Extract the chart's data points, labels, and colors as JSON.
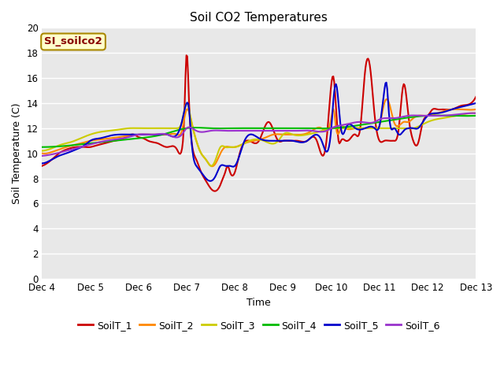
{
  "title": "Soil CO2 Temperatures",
  "xlabel": "Time",
  "ylabel": "Soil Temperature (C)",
  "annotation": "SI_soilco2",
  "ylim": [
    0,
    20
  ],
  "yticks": [
    0,
    2,
    4,
    6,
    8,
    10,
    12,
    14,
    16,
    18,
    20
  ],
  "x_labels": [
    "Dec 4",
    "Dec 5",
    "Dec 6",
    "Dec 7",
    "Dec 8",
    "Dec 9",
    "Dec 10",
    "Dec 11",
    "Dec 12",
    "Dec 13"
  ],
  "series_colors": [
    "#cc0000",
    "#ff8800",
    "#cccc00",
    "#00bb00",
    "#0000cc",
    "#9933cc"
  ],
  "series_names": [
    "SoilT_1",
    "SoilT_2",
    "SoilT_3",
    "SoilT_4",
    "SoilT_5",
    "SoilT_6"
  ],
  "background_color": "#e8e8e8",
  "grid_color": "#ffffff",
  "SoilT_1_x": [
    0,
    0.1,
    0.2,
    0.35,
    0.5,
    0.7,
    0.9,
    1.0,
    1.1,
    1.2,
    1.3,
    1.5,
    1.7,
    1.9,
    2.0,
    2.1,
    2.2,
    2.4,
    2.6,
    2.8,
    2.9,
    2.95,
    3.0,
    3.05,
    3.1,
    3.2,
    3.3,
    3.4,
    3.5,
    3.6,
    3.7,
    3.75,
    3.8,
    3.85,
    3.9,
    4.0,
    4.1,
    4.3,
    4.5,
    4.7,
    4.9,
    5.0,
    5.1,
    5.2,
    5.3,
    5.5,
    5.7,
    5.9,
    6.0,
    6.05,
    6.1,
    6.15,
    6.2,
    6.3,
    6.4,
    6.5,
    6.6,
    6.7,
    6.8,
    6.9,
    7.0,
    7.1,
    7.2,
    7.3,
    7.4,
    7.5,
    7.6,
    7.7,
    7.8,
    7.9,
    8.0,
    8.1,
    8.2,
    8.3,
    8.5,
    8.7,
    8.9,
    9.0
  ],
  "SoilT_1_y": [
    9.0,
    9.2,
    9.5,
    10.0,
    10.3,
    10.5,
    10.5,
    10.5,
    10.6,
    10.7,
    10.8,
    11.0,
    11.2,
    11.5,
    11.3,
    11.2,
    11.0,
    10.8,
    10.5,
    10.3,
    10.3,
    13.0,
    18.0,
    14.0,
    11.0,
    9.5,
    8.5,
    7.8,
    7.2,
    7.0,
    7.5,
    8.0,
    8.5,
    9.0,
    8.5,
    8.5,
    10.0,
    11.0,
    11.0,
    12.5,
    11.0,
    11.0,
    11.0,
    11.0,
    11.0,
    11.0,
    11.0,
    11.0,
    15.5,
    16.0,
    13.5,
    11.0,
    11.0,
    11.0,
    11.2,
    11.5,
    12.0,
    16.5,
    17.0,
    13.0,
    11.0,
    11.0,
    11.0,
    11.0,
    12.0,
    15.5,
    13.0,
    11.0,
    10.8,
    12.5,
    13.0,
    13.5,
    13.5,
    13.5,
    13.5,
    13.8,
    14.0,
    14.5
  ],
  "SoilT_2_x": [
    0,
    0.1,
    0.2,
    0.35,
    0.5,
    0.7,
    0.9,
    1.0,
    1.2,
    1.4,
    1.6,
    1.8,
    2.0,
    2.2,
    2.4,
    2.6,
    2.8,
    2.9,
    3.0,
    3.1,
    3.2,
    3.3,
    3.4,
    3.5,
    3.6,
    3.7,
    3.8,
    3.9,
    4.0,
    4.2,
    4.4,
    4.6,
    4.8,
    5.0,
    5.2,
    5.4,
    5.6,
    5.8,
    6.0,
    6.05,
    6.1,
    6.2,
    6.3,
    6.5,
    6.7,
    6.9,
    7.0,
    7.1,
    7.2,
    7.3,
    7.4,
    7.5,
    7.6,
    7.7,
    7.8,
    7.9,
    8.0,
    8.2,
    8.5,
    8.7,
    9.0
  ],
  "SoilT_2_y": [
    10.0,
    10.0,
    10.1,
    10.3,
    10.5,
    10.7,
    10.9,
    11.0,
    11.1,
    11.2,
    11.3,
    11.4,
    11.5,
    11.5,
    11.5,
    11.5,
    11.5,
    11.8,
    13.5,
    12.5,
    11.0,
    10.0,
    9.5,
    9.0,
    9.2,
    10.0,
    10.5,
    10.5,
    10.5,
    10.8,
    11.0,
    11.2,
    11.5,
    11.5,
    11.5,
    11.5,
    11.8,
    12.0,
    12.8,
    13.5,
    12.0,
    12.0,
    12.0,
    12.0,
    12.0,
    12.0,
    12.2,
    14.0,
    14.0,
    12.5,
    12.2,
    12.5,
    12.5,
    12.8,
    13.0,
    13.0,
    13.0,
    13.2,
    13.5,
    13.5,
    13.5
  ],
  "SoilT_3_x": [
    0,
    0.2,
    0.4,
    0.6,
    0.8,
    1.0,
    1.2,
    1.4,
    1.6,
    1.8,
    2.0,
    2.2,
    2.5,
    2.8,
    2.9,
    3.0,
    3.1,
    3.2,
    3.3,
    3.4,
    3.5,
    3.6,
    3.7,
    3.8,
    3.9,
    4.0,
    4.3,
    4.6,
    4.9,
    5.0,
    5.2,
    5.5,
    5.8,
    6.0,
    6.05,
    6.1,
    6.2,
    6.3,
    6.5,
    6.7,
    6.9,
    7.0,
    7.1,
    7.2,
    7.3,
    7.4,
    7.5,
    7.7,
    8.0,
    8.3,
    8.6,
    8.9,
    9.0
  ],
  "SoilT_3_y": [
    10.2,
    10.4,
    10.7,
    10.9,
    11.2,
    11.5,
    11.7,
    11.8,
    11.9,
    12.0,
    12.0,
    12.0,
    12.0,
    12.0,
    12.5,
    14.0,
    12.5,
    11.0,
    10.0,
    9.5,
    9.0,
    9.5,
    10.5,
    10.5,
    10.5,
    10.5,
    11.0,
    11.0,
    11.0,
    11.5,
    11.5,
    11.5,
    11.8,
    12.0,
    12.0,
    12.0,
    12.0,
    12.0,
    12.0,
    12.0,
    12.0,
    12.0,
    12.0,
    12.0,
    12.0,
    12.0,
    12.0,
    12.0,
    12.5,
    12.8,
    13.0,
    13.2,
    13.2
  ],
  "SoilT_4_x": [
    0,
    0.5,
    1.0,
    1.5,
    2.0,
    2.5,
    3.0,
    3.5,
    4.0,
    4.5,
    5.0,
    5.5,
    6.0,
    6.5,
    7.0,
    7.5,
    8.0,
    8.5,
    9.0
  ],
  "SoilT_4_y": [
    10.5,
    10.6,
    10.8,
    11.0,
    11.2,
    11.5,
    12.0,
    12.0,
    12.0,
    12.0,
    12.0,
    12.0,
    12.0,
    12.2,
    12.5,
    12.8,
    13.0,
    13.0,
    13.0
  ],
  "SoilT_5_x": [
    0,
    0.1,
    0.2,
    0.35,
    0.5,
    0.7,
    0.9,
    1.0,
    1.2,
    1.4,
    1.6,
    1.8,
    2.0,
    2.2,
    2.4,
    2.6,
    2.8,
    2.9,
    3.0,
    3.05,
    3.1,
    3.2,
    3.3,
    3.4,
    3.5,
    3.6,
    3.7,
    3.8,
    3.9,
    4.0,
    4.2,
    4.5,
    4.8,
    5.0,
    5.2,
    5.5,
    5.8,
    6.0,
    6.05,
    6.1,
    6.15,
    6.2,
    6.3,
    6.5,
    6.7,
    6.9,
    7.0,
    7.1,
    7.15,
    7.2,
    7.3,
    7.4,
    7.5,
    7.6,
    7.7,
    7.8,
    7.9,
    8.0,
    8.2,
    8.5,
    8.8,
    9.0
  ],
  "SoilT_5_y": [
    9.2,
    9.3,
    9.5,
    9.8,
    10.0,
    10.3,
    10.7,
    11.0,
    11.2,
    11.4,
    11.5,
    11.5,
    11.5,
    11.5,
    11.5,
    11.5,
    11.5,
    12.5,
    14.0,
    13.5,
    11.0,
    9.0,
    8.5,
    8.0,
    7.8,
    8.2,
    9.0,
    9.0,
    9.0,
    9.0,
    11.0,
    11.2,
    11.0,
    11.0,
    11.0,
    11.0,
    11.0,
    12.0,
    14.5,
    15.5,
    14.0,
    12.0,
    12.0,
    12.0,
    12.0,
    12.0,
    12.2,
    15.0,
    15.5,
    13.0,
    12.0,
    11.5,
    11.8,
    12.0,
    12.0,
    12.0,
    12.5,
    13.0,
    13.2,
    13.5,
    13.8,
    14.0
  ],
  "SoilT_6_x": [
    0,
    0.3,
    0.6,
    0.9,
    1.2,
    1.5,
    1.8,
    2.0,
    2.3,
    2.6,
    2.9,
    3.0,
    3.2,
    3.5,
    3.8,
    4.0,
    4.3,
    4.6,
    4.9,
    5.0,
    5.3,
    5.6,
    5.9,
    6.0,
    6.3,
    6.6,
    6.9,
    7.0,
    7.3,
    7.6,
    7.9,
    8.0,
    8.3,
    8.6,
    8.9,
    9.0
  ],
  "SoilT_6_y": [
    9.8,
    10.0,
    10.3,
    10.6,
    10.9,
    11.1,
    11.3,
    11.5,
    11.5,
    11.5,
    11.5,
    12.0,
    11.8,
    11.8,
    11.8,
    11.8,
    11.8,
    11.8,
    11.8,
    11.8,
    11.8,
    11.8,
    11.8,
    12.0,
    12.3,
    12.5,
    12.5,
    12.7,
    12.8,
    13.0,
    13.0,
    13.0,
    13.0,
    13.1,
    13.2,
    13.2
  ]
}
